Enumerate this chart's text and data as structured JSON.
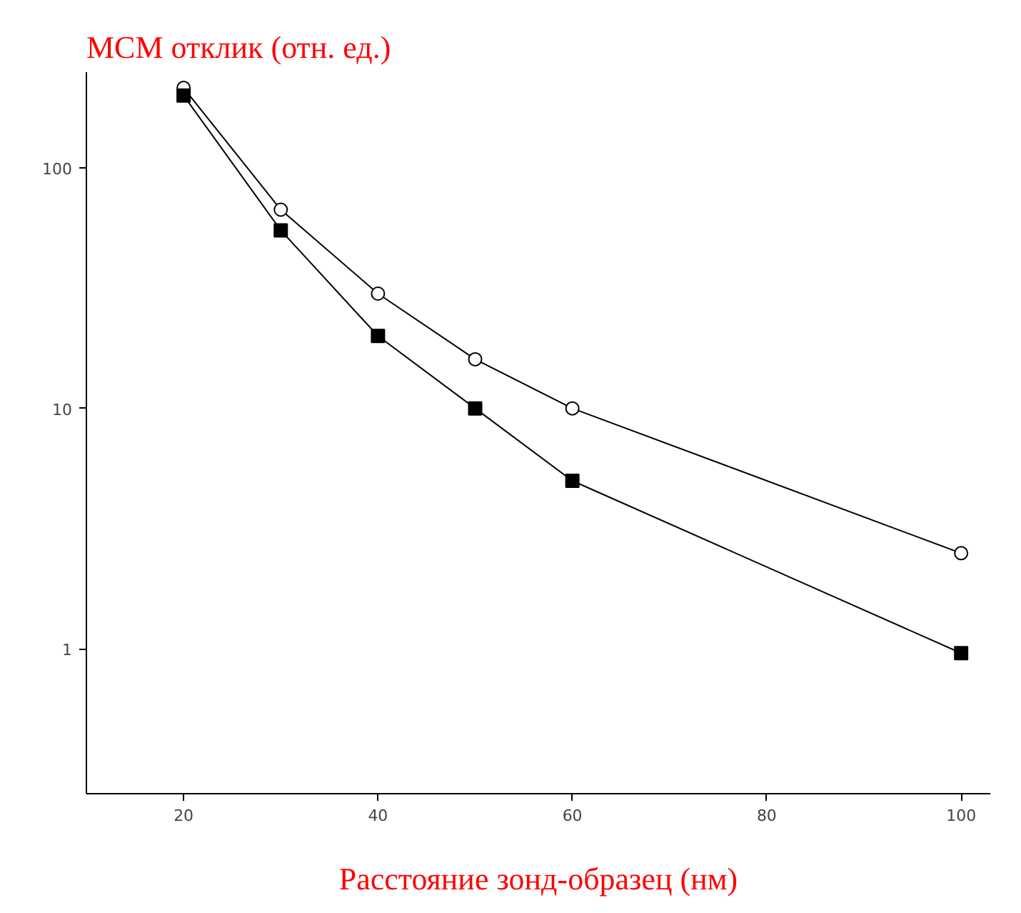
{
  "chart_data": {
    "type": "line",
    "ylabel": "МСМ отклик (отн. ед.)",
    "xlabel": "Расстояние зонд-образец (нм)",
    "x": [
      20,
      30,
      40,
      50,
      60,
      100
    ],
    "series": [
      {
        "color": "#000000",
        "marker": "circle",
        "values": [
          215,
          67,
          30,
          16,
          10,
          2.5
        ]
      },
      {
        "color": "#000000",
        "marker": "square",
        "values": [
          200,
          55,
          20,
          10,
          5,
          0.96
        ]
      }
    ],
    "log": "y",
    "xlim": [
      10,
      103
    ],
    "ylim": [
      0.25,
      250
    ],
    "xticks": [
      20,
      40,
      60,
      80,
      100
    ],
    "yticks": [
      1,
      10,
      100
    ],
    "grid": false,
    "line_style": "solid"
  }
}
